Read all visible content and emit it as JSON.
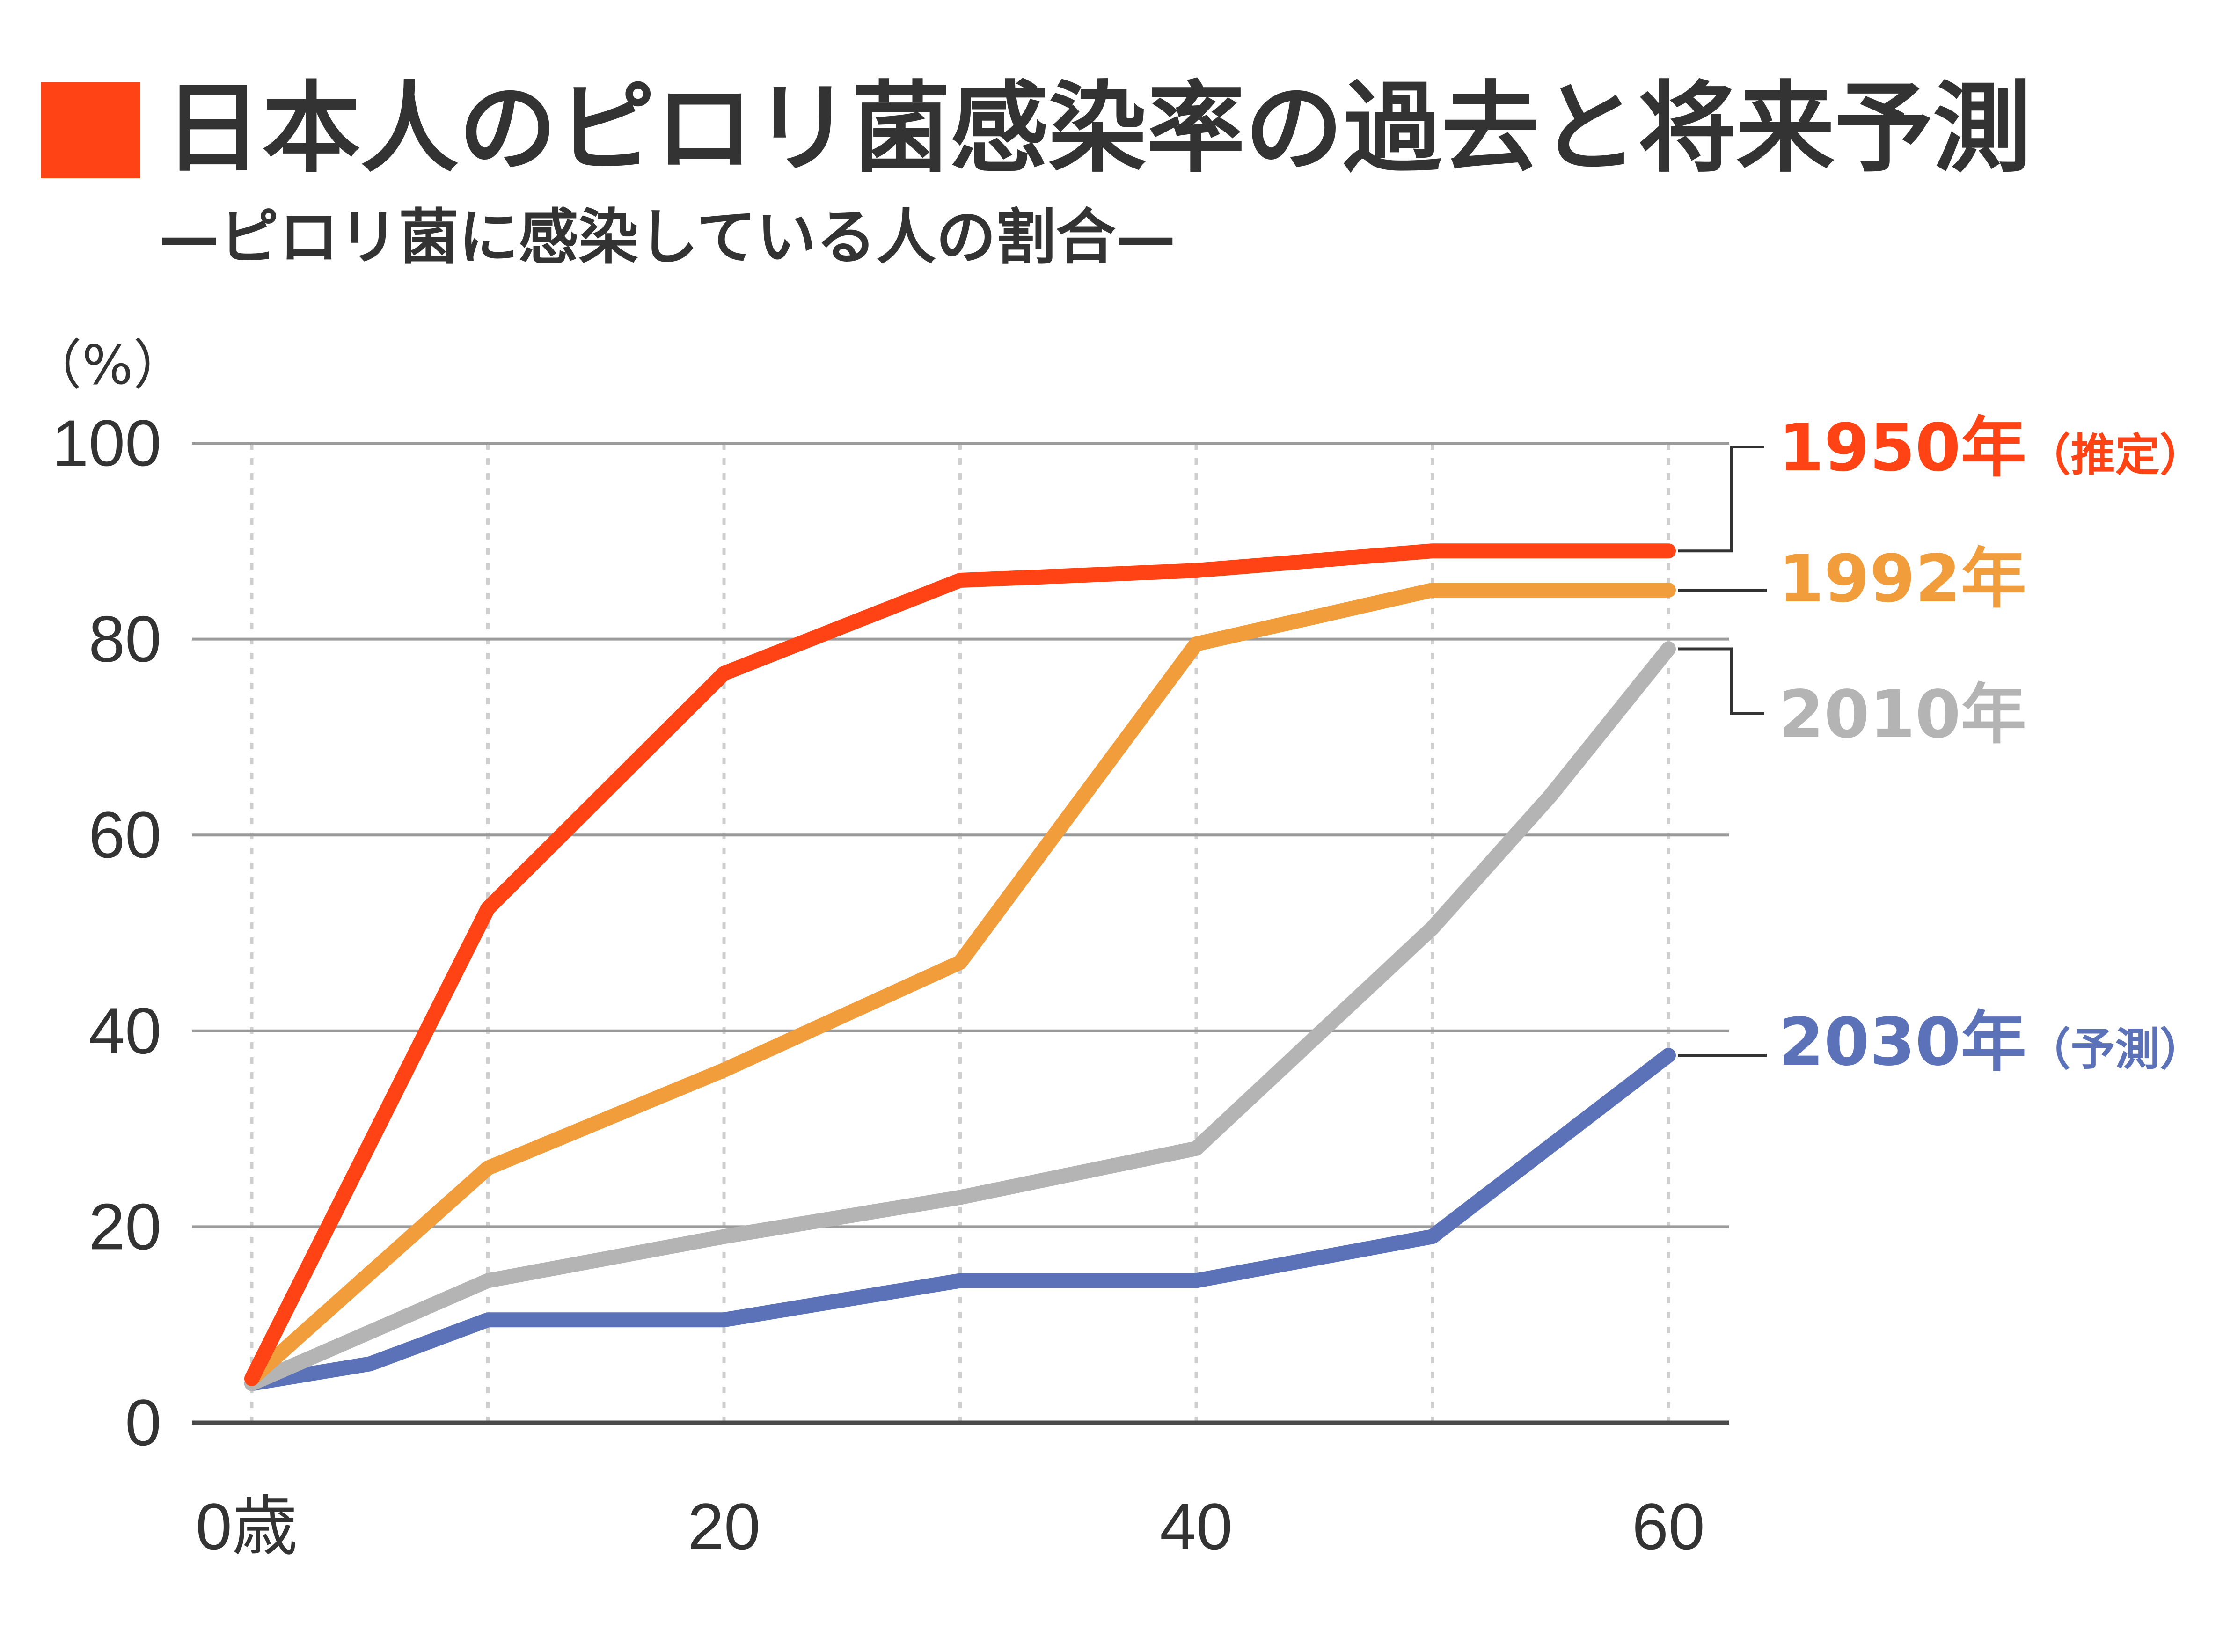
{
  "title": "日本人のピロリ菌感染率の過去と将来予測",
  "subtitle": "—ピロリ菌に感染している人の割合—",
  "colors": {
    "title_square": "#FF4314",
    "grid": "#9a9a9a",
    "vgrid": "#cfcfcf"
  },
  "chart_data": {
    "type": "line",
    "ylabel": "（%）",
    "ylim": [
      0,
      100
    ],
    "yticks": [
      "0",
      "20",
      "40",
      "60",
      "80",
      "100"
    ],
    "xlim": [
      0,
      60
    ],
    "xtick_labels": [
      "0歳",
      "20",
      "40",
      "60"
    ],
    "x_gridlines": [
      0,
      10,
      20,
      30,
      40,
      50,
      60
    ],
    "grid": true,
    "legend": "right",
    "series": [
      {
        "name": "1950年",
        "suffix": "（推定）",
        "color": "#FF4314",
        "x": [
          0,
          10,
          20,
          30,
          40,
          50,
          60
        ],
        "values": [
          4.5,
          52.5,
          76.5,
          86,
          87,
          89,
          89
        ]
      },
      {
        "name": "1992年",
        "suffix": "",
        "color": "#F29D3C",
        "x": [
          0,
          10,
          20,
          30,
          40,
          50,
          60
        ],
        "values": [
          4.5,
          26,
          36,
          47,
          79.5,
          85,
          85
        ]
      },
      {
        "name": "2010年",
        "suffix": "",
        "color": "#B4B4B4",
        "x": [
          0,
          10,
          20,
          30,
          40,
          50,
          55,
          60
        ],
        "values": [
          4,
          14.5,
          19,
          23,
          28,
          50.5,
          64,
          79
        ]
      },
      {
        "name": "2030年",
        "suffix": "（予測）",
        "color": "#5B72B9",
        "x": [
          0,
          5,
          10,
          20,
          30,
          40,
          50,
          60
        ],
        "values": [
          4,
          6,
          10.5,
          10.5,
          14.5,
          14.5,
          19,
          37.5
        ]
      }
    ]
  }
}
